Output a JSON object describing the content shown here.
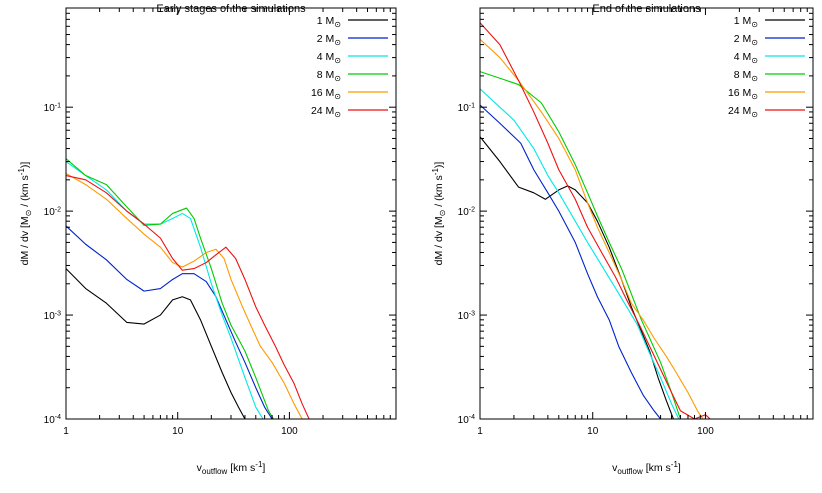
{
  "chart_data": [
    {
      "type": "line",
      "title": "Early stages of the simulations",
      "xlabel": "v_outflow [km s^-1]",
      "ylabel": "dM / dv [M_⊙ / (km s^-1)]",
      "x_scale": "log",
      "y_scale": "log",
      "xlim": [
        1,
        900
      ],
      "ylim": [
        0.0001,
        0.9
      ],
      "grid": false,
      "legend_position": "top-right",
      "x_ticks": [
        {
          "value": 1,
          "label": "1"
        },
        {
          "value": 10,
          "label": "10"
        },
        {
          "value": 100,
          "label": "100"
        }
      ],
      "y_ticks": [
        {
          "value": 0.0001,
          "label": "10^-4"
        },
        {
          "value": 0.001,
          "label": "10^-3"
        },
        {
          "value": 0.01,
          "label": "10^-2"
        },
        {
          "value": 0.1,
          "label": "10^-1"
        }
      ],
      "series": [
        {
          "name": "1 M_⊙",
          "color": "#000000",
          "points": [
            [
              1,
              0.0028
            ],
            [
              1.5,
              0.0018
            ],
            [
              2.3,
              0.0013
            ],
            [
              3.5,
              0.00085
            ],
            [
              5,
              0.00082
            ],
            [
              7,
              0.001
            ],
            [
              9,
              0.0014
            ],
            [
              11,
              0.0015
            ],
            [
              13,
              0.0014
            ],
            [
              16,
              0.0009
            ],
            [
              20,
              0.0005
            ],
            [
              25,
              0.00028
            ],
            [
              30,
              0.00018
            ],
            [
              35,
              0.00013
            ],
            [
              40,
              0.0001
            ]
          ]
        },
        {
          "name": "2 M_⊙",
          "color": "#0022cc",
          "points": [
            [
              1,
              0.0072
            ],
            [
              1.5,
              0.0048
            ],
            [
              2.3,
              0.0034
            ],
            [
              3.5,
              0.0022
            ],
            [
              5,
              0.0017
            ],
            [
              7,
              0.0018
            ],
            [
              9,
              0.0022
            ],
            [
              11,
              0.0025
            ],
            [
              14,
              0.0025
            ],
            [
              18,
              0.0021
            ],
            [
              22,
              0.0015
            ],
            [
              27,
              0.0009
            ],
            [
              33,
              0.00055
            ],
            [
              40,
              0.00035
            ],
            [
              50,
              0.0002
            ],
            [
              60,
              0.00013
            ],
            [
              70,
              0.0001
            ]
          ]
        },
        {
          "name": "4 M_⊙",
          "color": "#00e8e8",
          "points": [
            [
              1,
              0.03
            ],
            [
              1.5,
              0.022
            ],
            [
              2.3,
              0.016
            ],
            [
              3.5,
              0.01
            ],
            [
              5,
              0.0075
            ],
            [
              7,
              0.0075
            ],
            [
              9,
              0.0085
            ],
            [
              11,
              0.0095
            ],
            [
              13,
              0.0085
            ],
            [
              16,
              0.0045
            ],
            [
              20,
              0.002
            ],
            [
              25,
              0.001
            ],
            [
              30,
              0.0006
            ],
            [
              40,
              0.00025
            ],
            [
              50,
              0.00013
            ],
            [
              58,
              0.0001
            ]
          ]
        },
        {
          "name": "8 M_⊙",
          "color": "#00cc00",
          "points": [
            [
              1,
              0.032
            ],
            [
              1.5,
              0.022
            ],
            [
              2.3,
              0.018
            ],
            [
              3.5,
              0.011
            ],
            [
              5,
              0.0073
            ],
            [
              7,
              0.0075
            ],
            [
              9,
              0.0095
            ],
            [
              12,
              0.0107
            ],
            [
              14,
              0.0085
            ],
            [
              16,
              0.0055
            ],
            [
              20,
              0.0028
            ],
            [
              25,
              0.0013
            ],
            [
              30,
              0.0008
            ],
            [
              40,
              0.00045
            ],
            [
              50,
              0.00025
            ],
            [
              65,
              0.00012
            ],
            [
              72,
              0.0001
            ]
          ]
        },
        {
          "name": "16 M_⊙",
          "color": "#ff9900",
          "points": [
            [
              1,
              0.023
            ],
            [
              1.5,
              0.018
            ],
            [
              2.3,
              0.013
            ],
            [
              3.5,
              0.0085
            ],
            [
              5,
              0.006
            ],
            [
              7,
              0.0045
            ],
            [
              9,
              0.0032
            ],
            [
              11,
              0.0029
            ],
            [
              14,
              0.0033
            ],
            [
              18,
              0.004
            ],
            [
              22,
              0.0043
            ],
            [
              26,
              0.0035
            ],
            [
              30,
              0.0022
            ],
            [
              38,
              0.0012
            ],
            [
              45,
              0.0008
            ],
            [
              55,
              0.0005
            ],
            [
              70,
              0.00035
            ],
            [
              90,
              0.00022
            ],
            [
              110,
              0.00014
            ],
            [
              130,
              0.0001
            ]
          ]
        },
        {
          "name": "24 M_⊙",
          "color": "#ee1111",
          "points": [
            [
              1,
              0.022
            ],
            [
              1.5,
              0.02
            ],
            [
              2.3,
              0.015
            ],
            [
              3.5,
              0.01
            ],
            [
              5,
              0.0075
            ],
            [
              7,
              0.0055
            ],
            [
              9,
              0.0035
            ],
            [
              11,
              0.0027
            ],
            [
              14,
              0.0028
            ],
            [
              18,
              0.0032
            ],
            [
              22,
              0.0038
            ],
            [
              27,
              0.0045
            ],
            [
              33,
              0.0035
            ],
            [
              40,
              0.0022
            ],
            [
              50,
              0.0012
            ],
            [
              60,
              0.0008
            ],
            [
              75,
              0.0005
            ],
            [
              90,
              0.00033
            ],
            [
              110,
              0.00022
            ],
            [
              130,
              0.00014
            ],
            [
              150,
              0.0001
            ]
          ]
        }
      ]
    },
    {
      "type": "line",
      "title": "End of the simulations",
      "xlabel": "v_outflow [km s^-1]",
      "ylabel": "dM / dv [M_⊙ / (km s^-1)]",
      "x_scale": "log",
      "y_scale": "log",
      "xlim": [
        1,
        900
      ],
      "ylim": [
        0.0001,
        0.9
      ],
      "grid": false,
      "legend_position": "top-right",
      "x_ticks": [
        {
          "value": 1,
          "label": "1"
        },
        {
          "value": 10,
          "label": "10"
        },
        {
          "value": 100,
          "label": "100"
        }
      ],
      "y_ticks": [
        {
          "value": 0.0001,
          "label": "10^-4"
        },
        {
          "value": 0.001,
          "label": "10^-3"
        },
        {
          "value": 0.01,
          "label": "10^-2"
        },
        {
          "value": 0.1,
          "label": "10^-1"
        }
      ],
      "series": [
        {
          "name": "1 M_⊙",
          "color": "#000000",
          "points": [
            [
              1,
              0.052
            ],
            [
              1.5,
              0.03
            ],
            [
              2.2,
              0.017
            ],
            [
              3,
              0.015
            ],
            [
              3.8,
              0.013
            ],
            [
              5,
              0.016
            ],
            [
              6,
              0.0175
            ],
            [
              7,
              0.016
            ],
            [
              9,
              0.012
            ],
            [
              11,
              0.008
            ],
            [
              14,
              0.0045
            ],
            [
              18,
              0.0022
            ],
            [
              22,
              0.0012
            ],
            [
              27,
              0.0007
            ],
            [
              32,
              0.00045
            ],
            [
              38,
              0.00025
            ],
            [
              45,
              0.00015
            ],
            [
              52,
              0.0001
            ]
          ]
        },
        {
          "name": "2 M_⊙",
          "color": "#0022cc",
          "points": [
            [
              1,
              0.105
            ],
            [
              1.5,
              0.07
            ],
            [
              2.3,
              0.045
            ],
            [
              3,
              0.025
            ],
            [
              4,
              0.015
            ],
            [
              5,
              0.01
            ],
            [
              7,
              0.005
            ],
            [
              9,
              0.0025
            ],
            [
              11,
              0.0015
            ],
            [
              14,
              0.0009
            ],
            [
              17,
              0.0005
            ],
            [
              22,
              0.00028
            ],
            [
              28,
              0.00017
            ],
            [
              35,
              0.00012
            ],
            [
              40,
              0.0001
            ]
          ]
        },
        {
          "name": "4 M_⊙",
          "color": "#00e8e8",
          "points": [
            [
              1,
              0.15
            ],
            [
              1.5,
              0.1
            ],
            [
              2,
              0.075
            ],
            [
              3,
              0.04
            ],
            [
              4,
              0.022
            ],
            [
              5,
              0.015
            ],
            [
              7,
              0.008
            ],
            [
              9,
              0.005
            ],
            [
              12,
              0.003
            ],
            [
              16,
              0.0018
            ],
            [
              20,
              0.0012
            ],
            [
              25,
              0.0008
            ],
            [
              30,
              0.0005
            ],
            [
              40,
              0.00025
            ],
            [
              50,
              0.00014
            ],
            [
              58,
              0.0001
            ]
          ]
        },
        {
          "name": "8 M_⊙",
          "color": "#00cc00",
          "points": [
            [
              1,
              0.22
            ],
            [
              2.2,
              0.165
            ],
            [
              3.5,
              0.11
            ],
            [
              5,
              0.058
            ],
            [
              7,
              0.028
            ],
            [
              9,
              0.015
            ],
            [
              11,
              0.009
            ],
            [
              14,
              0.005
            ],
            [
              18,
              0.0028
            ],
            [
              22,
              0.0016
            ],
            [
              27,
              0.0009
            ],
            [
              32,
              0.0006
            ],
            [
              40,
              0.00035
            ],
            [
              50,
              0.00018
            ],
            [
              60,
              0.0001
            ]
          ]
        },
        {
          "name": "16 M_⊙",
          "color": "#ff9900",
          "points": [
            [
              1,
              0.45
            ],
            [
              1.5,
              0.3
            ],
            [
              2.2,
              0.18
            ],
            [
              3.5,
              0.09
            ],
            [
              5,
              0.05
            ],
            [
              7,
              0.025
            ],
            [
              9,
              0.012
            ],
            [
              11,
              0.007
            ],
            [
              14,
              0.004
            ],
            [
              18,
              0.0022
            ],
            [
              22,
              0.0013
            ],
            [
              28,
              0.0009
            ],
            [
              35,
              0.0006
            ],
            [
              45,
              0.0004
            ],
            [
              55,
              0.00028
            ],
            [
              70,
              0.00018
            ],
            [
              85,
              0.00012
            ],
            [
              95,
              0.0001
            ]
          ]
        },
        {
          "name": "24 M_⊙",
          "color": "#ee1111",
          "points": [
            [
              1,
              0.65
            ],
            [
              1.5,
              0.4
            ],
            [
              2.2,
              0.18
            ],
            [
              3,
              0.09
            ],
            [
              4,
              0.045
            ],
            [
              5,
              0.025
            ],
            [
              7,
              0.013
            ],
            [
              9,
              0.007
            ],
            [
              12,
              0.004
            ],
            [
              16,
              0.0023
            ],
            [
              20,
              0.0014
            ],
            [
              26,
              0.0008
            ],
            [
              32,
              0.0005
            ],
            [
              40,
              0.0003
            ],
            [
              50,
              0.00018
            ],
            [
              60,
              0.00012
            ],
            [
              80,
              0.0001
            ],
            [
              100,
              0.00011
            ],
            [
              110,
              0.0001
            ]
          ]
        }
      ]
    }
  ]
}
